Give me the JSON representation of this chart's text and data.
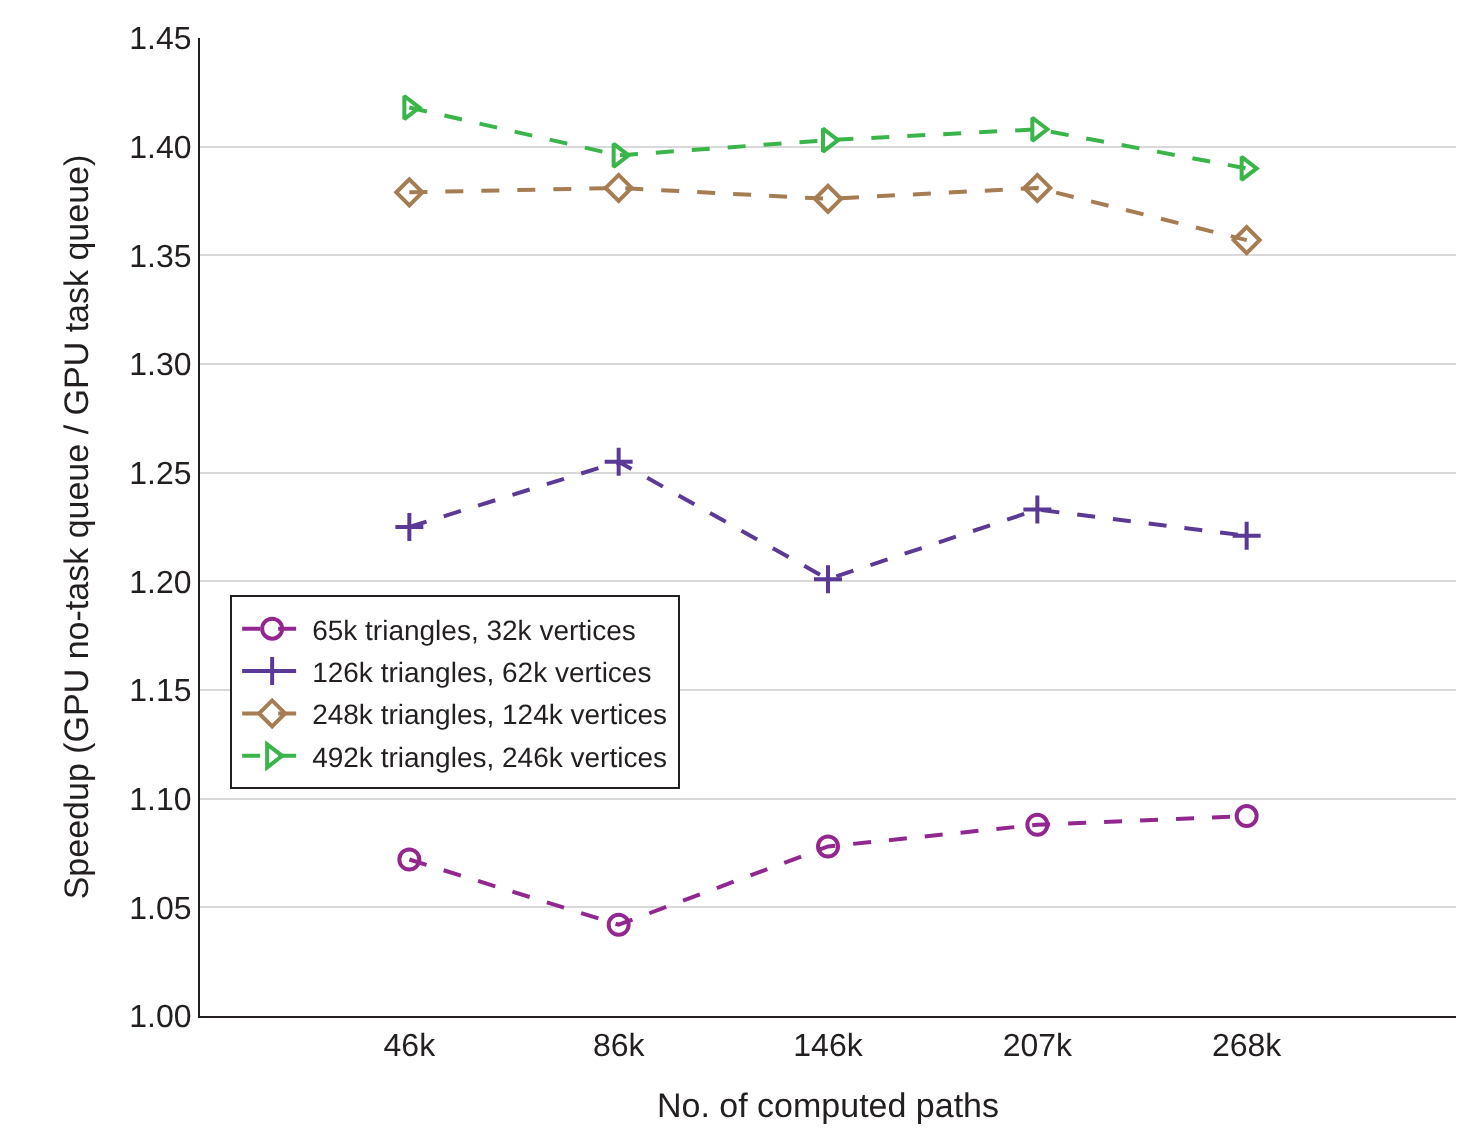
{
  "chart_data": {
    "type": "line",
    "xlabel": "No. of computed paths",
    "ylabel": "Speedup (GPU no-task queue / GPU task queue)",
    "categories": [
      "46k",
      "86k",
      "146k",
      "207k",
      "268k"
    ],
    "ylim": [
      1.0,
      1.45
    ],
    "yticks": [
      {
        "value": 1.0,
        "label": "1.00"
      },
      {
        "value": 1.05,
        "label": "1.05"
      },
      {
        "value": 1.1,
        "label": "1.10"
      },
      {
        "value": 1.15,
        "label": "1.15"
      },
      {
        "value": 1.2,
        "label": "1.20"
      },
      {
        "value": 1.25,
        "label": "1.25"
      },
      {
        "value": 1.3,
        "label": "1.30"
      },
      {
        "value": 1.35,
        "label": "1.35"
      },
      {
        "value": 1.4,
        "label": "1.40"
      },
      {
        "value": 1.45,
        "label": "1.45"
      }
    ],
    "grid": "y",
    "legend": "left",
    "line_style": "dashed",
    "series": [
      {
        "name": "65k triangles, 32k vertices",
        "color": "#92278f",
        "marker": "circle",
        "values": [
          1.072,
          1.042,
          1.078,
          1.088,
          1.092
        ]
      },
      {
        "name": "126k triangles, 62k vertices",
        "color": "#5b3a96",
        "marker": "cross",
        "values": [
          1.225,
          1.255,
          1.201,
          1.233,
          1.221
        ]
      },
      {
        "name": "248k triangles, 124k vertices",
        "color": "#a67c52",
        "marker": "diamond",
        "values": [
          1.379,
          1.381,
          1.376,
          1.381,
          1.357
        ]
      },
      {
        "name": "492k triangles, 246k vertices",
        "color": "#39b54a",
        "marker": "triangle",
        "values": [
          1.418,
          1.396,
          1.403,
          1.408,
          1.39
        ]
      }
    ]
  }
}
